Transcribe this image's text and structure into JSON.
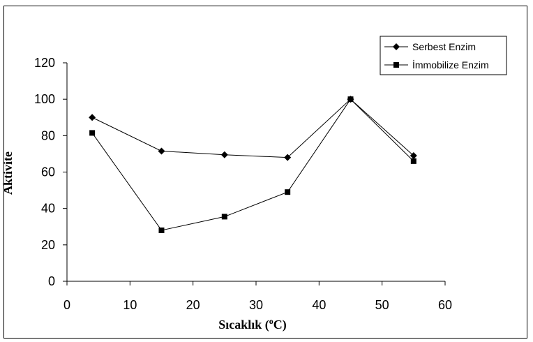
{
  "chart_data": {
    "type": "line",
    "xlabel": "Sıcaklık (°C)",
    "xlabel_parts": {
      "before": "Sıcaklık (",
      "sup": "o",
      "after": "C)"
    },
    "ylabel": "Aktivite",
    "xlim": [
      0,
      60
    ],
    "ylim": [
      0,
      120
    ],
    "xticks": [
      0,
      10,
      20,
      30,
      40,
      50,
      60
    ],
    "yticks": [
      0,
      20,
      40,
      60,
      80,
      100,
      120
    ],
    "grid": false,
    "legend_position": "top-right",
    "x": [
      4,
      15,
      25,
      35,
      45,
      55
    ],
    "series": [
      {
        "name": "Serbest Enzim",
        "marker": "diamond",
        "color": "#000000",
        "values": [
          90,
          71.5,
          69.5,
          68,
          100,
          69
        ]
      },
      {
        "name": "İmmobilize Enzim",
        "marker": "square",
        "color": "#000000",
        "values": [
          81.5,
          28,
          35.5,
          49,
          100,
          66
        ]
      }
    ]
  }
}
